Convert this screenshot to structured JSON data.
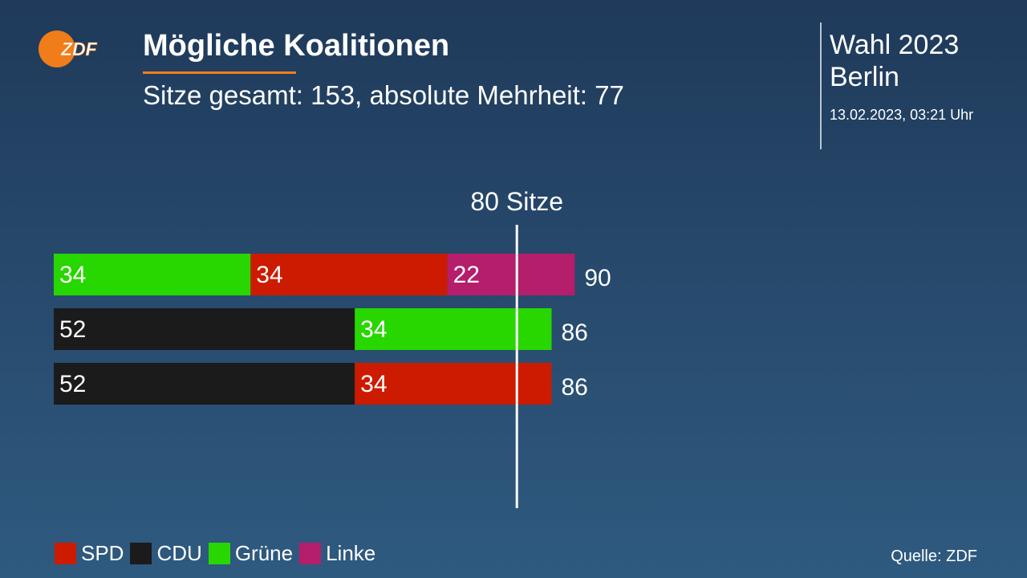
{
  "brand": {
    "logo_text": "ZDF",
    "logo_color": "#f07d19"
  },
  "header": {
    "title": "Mögliche Koalitionen",
    "subtitle": "Sitze gesamt: 153, absolute Mehrheit: 77"
  },
  "meta": {
    "title_line1": "Wahl 2023",
    "title_line2": "Berlin",
    "date": "13.02.2023, 03:21 Uhr"
  },
  "colors": {
    "SPD": "#cc1b00",
    "CDU": "#1b1b1b",
    "Grüne": "#28d600",
    "Linke": "#b51e6b",
    "marker": "#ffffff"
  },
  "chart_data": {
    "type": "bar",
    "orientation": "horizontal",
    "stacked": true,
    "reference_line": {
      "value": 80,
      "label": "80 Sitze"
    },
    "coalitions": [
      {
        "segments": [
          {
            "party": "Grüne",
            "value": 34
          },
          {
            "party": "SPD",
            "value": 34
          },
          {
            "party": "Linke",
            "value": 22
          }
        ],
        "total": 90
      },
      {
        "segments": [
          {
            "party": "CDU",
            "value": 52
          },
          {
            "party": "Grüne",
            "value": 34
          }
        ],
        "total": 86
      },
      {
        "segments": [
          {
            "party": "CDU",
            "value": 52
          },
          {
            "party": "SPD",
            "value": 34
          }
        ],
        "total": 86
      }
    ],
    "legend": [
      "SPD",
      "CDU",
      "Grüne",
      "Linke"
    ],
    "source": "Quelle: ZDF"
  }
}
